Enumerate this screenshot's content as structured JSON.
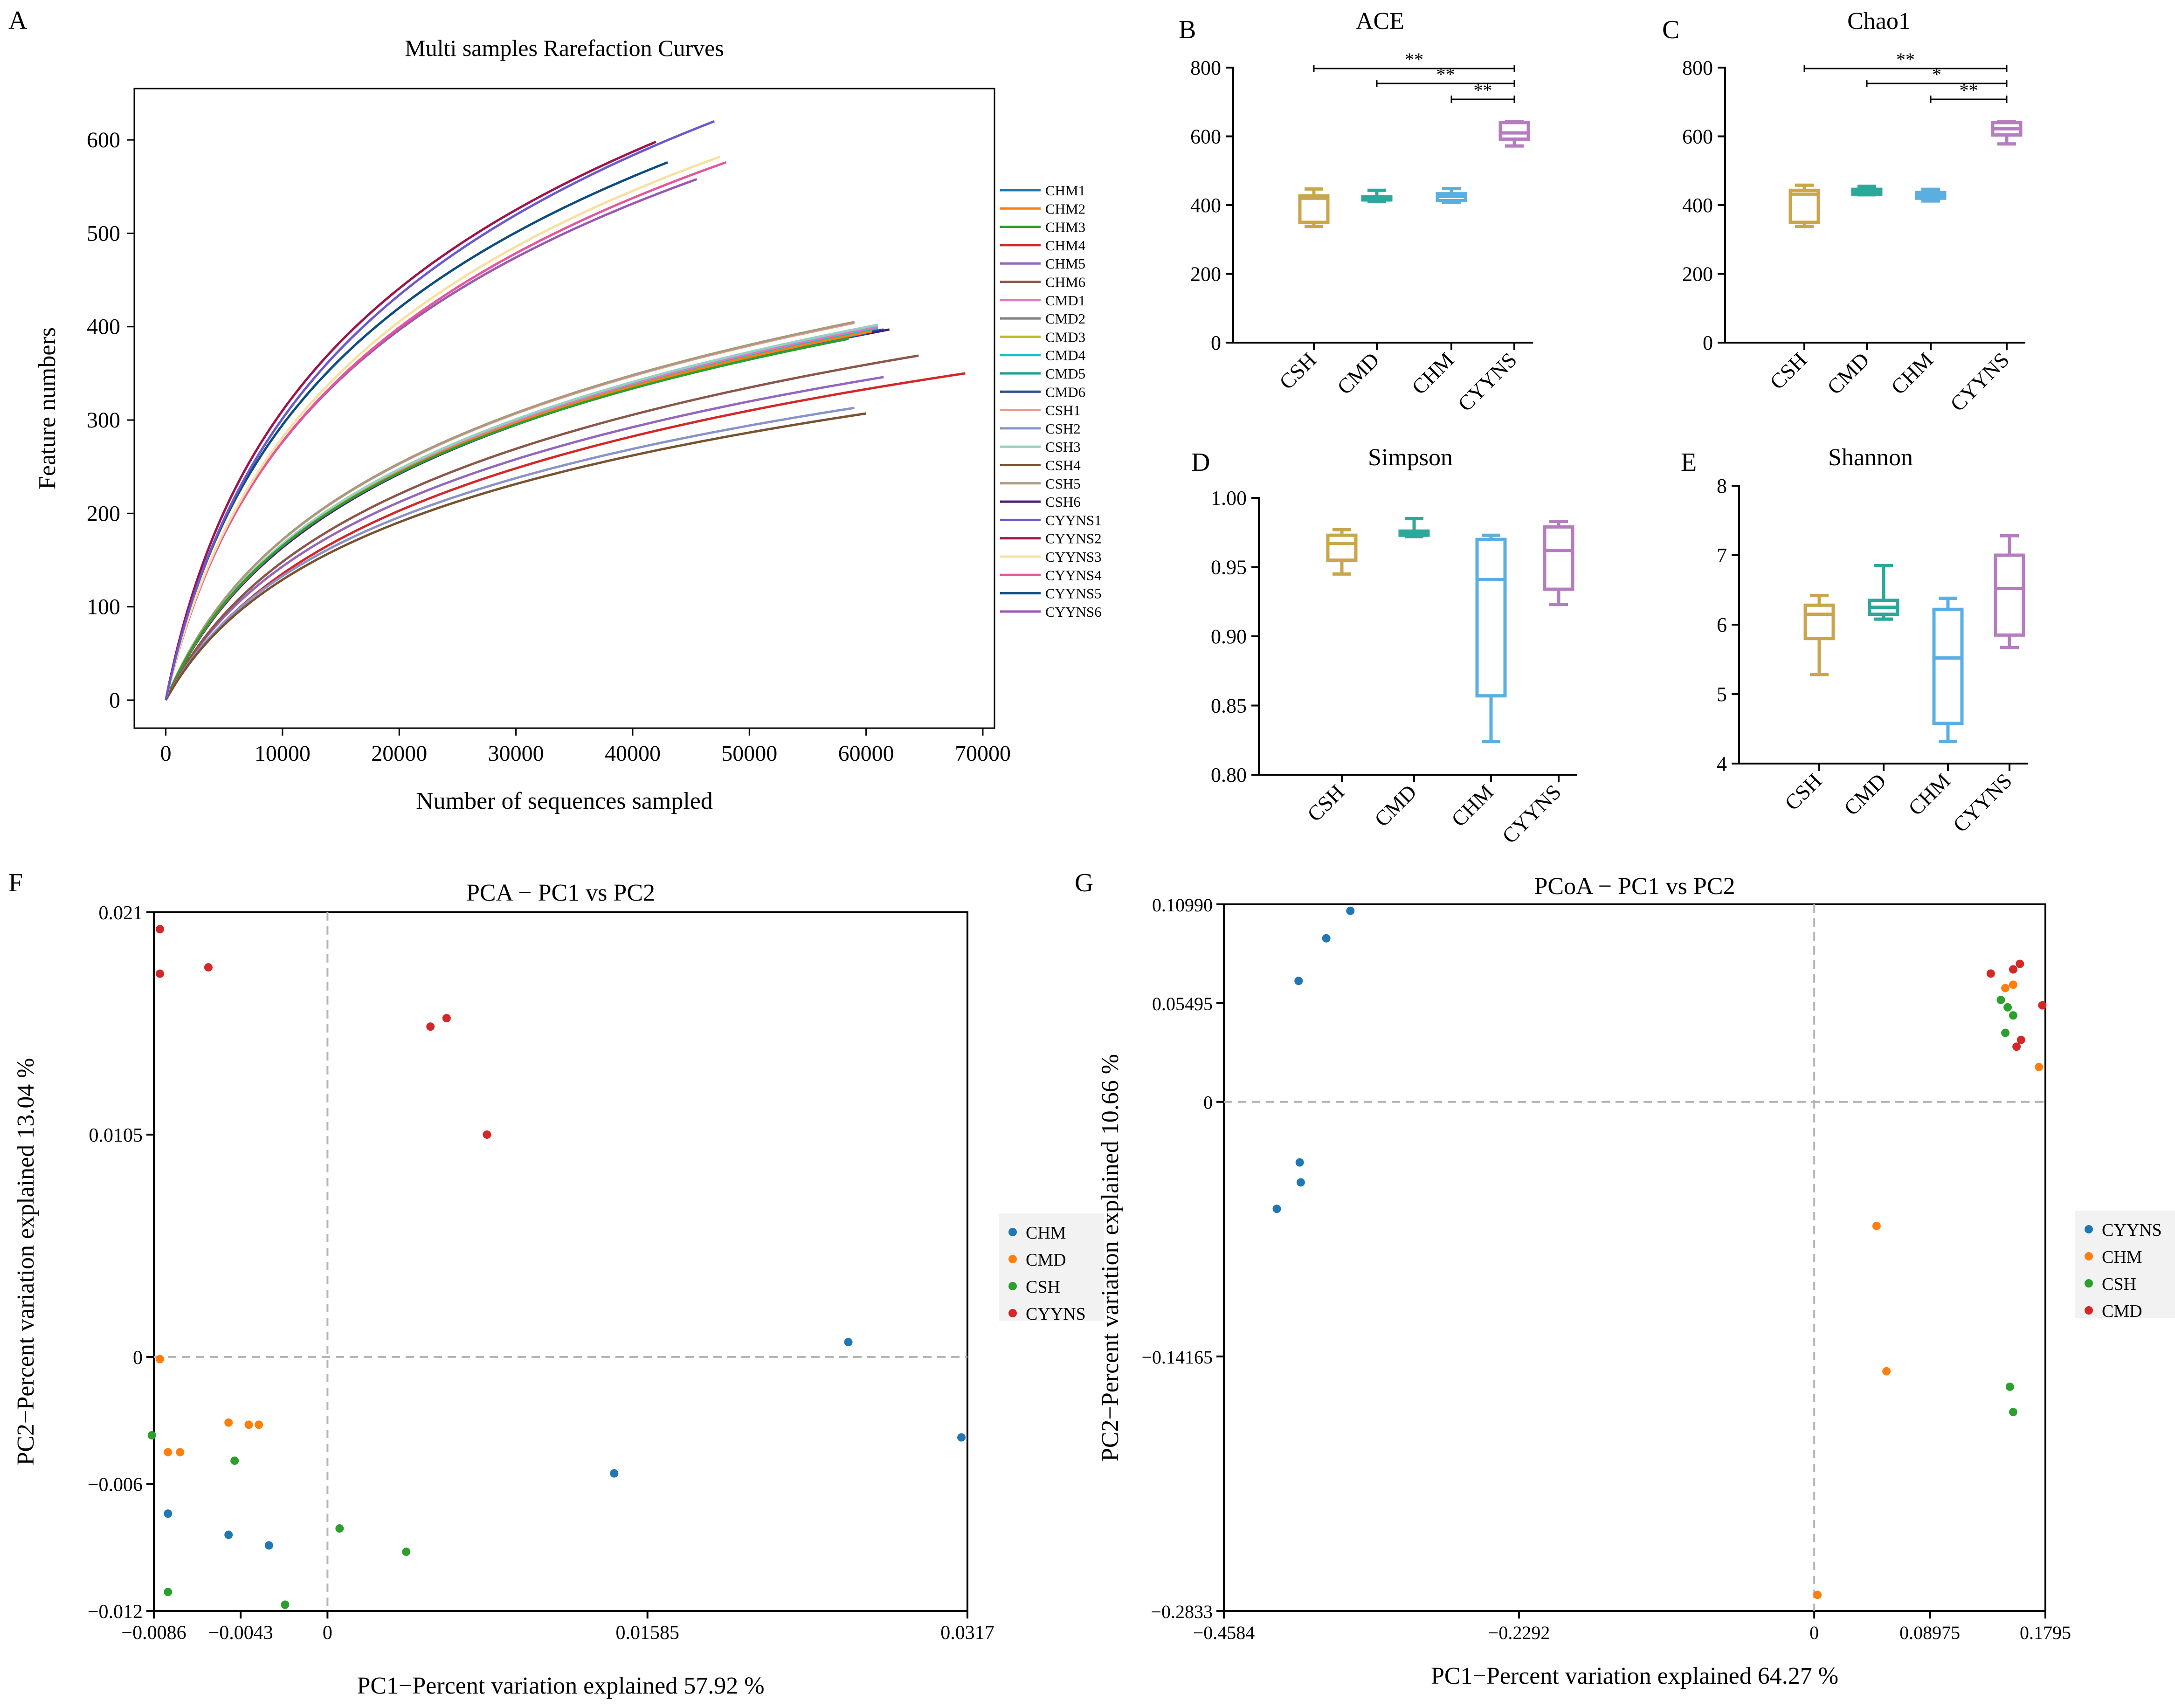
{
  "colors": {
    "CHM1": "#1f77b4",
    "CHM2": "#ff7f0e",
    "CHM3": "#2ca02c",
    "CHM4": "#d62728",
    "CHM5": "#9467bd",
    "CHM6": "#8c564b",
    "CMD1": "#e377c2",
    "CMD2": "#7f7f7f",
    "CMD3": "#bcbd22",
    "CMD4": "#17becf",
    "CMD5": "#1a9e8f",
    "CMD6": "#2a4d8f",
    "CSH1": "#f29a8a",
    "CSH2": "#8a93c8",
    "CSH3": "#8fd3c0",
    "CSH4": "#7a5230",
    "CSH5": "#a89a80",
    "CSH6": "#4b1a7a",
    "CYYNS1": "#6a5acd",
    "CYYNS2": "#a0134d",
    "CYYNS3": "#f7e0a0",
    "CYYNS4": "#e8559a",
    "CYYNS5": "#0d4d80",
    "CYYNS6": "#9b59b6",
    "box_CSH": "#c9a64a",
    "box_CMD": "#2aa89a",
    "box_CHM": "#5aaee0",
    "box_CYYNS": "#b57cc0",
    "scatter_blue": "#1f77b4",
    "scatter_orange": "#ff7f0e",
    "scatter_green": "#2ca02c",
    "scatter_red": "#d62728"
  },
  "chart_data": [
    {
      "panel": "A",
      "type": "line",
      "title": "Multi samples Rarefaction Curves",
      "xlabel": "Number of sequences sampled",
      "ylabel": "Feature numbers",
      "xlim": [
        -2700,
        71000
      ],
      "ylim": [
        -30,
        655
      ],
      "xticks": [
        0,
        10000,
        20000,
        30000,
        40000,
        50000,
        60000,
        70000
      ],
      "xtick_labels": [
        "0",
        "10000",
        "20000",
        "30000",
        "40000",
        "50000",
        "60000",
        "70000"
      ],
      "yticks": [
        0,
        100,
        200,
        300,
        400,
        500,
        600
      ],
      "ytick_labels": [
        "0",
        "100",
        "200",
        "300",
        "400",
        "500",
        "600"
      ],
      "series": [
        {
          "name": "CHM1",
          "max_x": 60000,
          "max_y": 393
        },
        {
          "name": "CHM2",
          "max_x": 60500,
          "max_y": 395
        },
        {
          "name": "CHM3",
          "max_x": 58500,
          "max_y": 387
        },
        {
          "name": "CHM4",
          "max_x": 68500,
          "max_y": 350
        },
        {
          "name": "CHM5",
          "max_x": 61500,
          "max_y": 346
        },
        {
          "name": "CHM6",
          "max_x": 64500,
          "max_y": 369
        },
        {
          "name": "CMD1",
          "max_x": 61000,
          "max_y": 400
        },
        {
          "name": "CMD2",
          "max_x": 60000,
          "max_y": 396
        },
        {
          "name": "CMD3",
          "max_x": 61000,
          "max_y": 398
        },
        {
          "name": "CMD4",
          "max_x": 61000,
          "max_y": 398
        },
        {
          "name": "CMD5",
          "max_x": 58500,
          "max_y": 387
        },
        {
          "name": "CMD6",
          "max_x": 61500,
          "max_y": 397
        },
        {
          "name": "CSH1",
          "max_x": 59000,
          "max_y": 404
        },
        {
          "name": "CSH2",
          "max_x": 59000,
          "max_y": 313
        },
        {
          "name": "CSH3",
          "max_x": 61000,
          "max_y": 402
        },
        {
          "name": "CSH4",
          "max_x": 60000,
          "max_y": 307
        },
        {
          "name": "CSH5",
          "max_x": 59000,
          "max_y": 405
        },
        {
          "name": "CSH6",
          "max_x": 62000,
          "max_y": 397
        },
        {
          "name": "CYYNS1",
          "max_x": 47000,
          "max_y": 620
        },
        {
          "name": "CYYNS2",
          "max_x": 42000,
          "max_y": 598
        },
        {
          "name": "CYYNS3",
          "max_x": 47500,
          "max_y": 582
        },
        {
          "name": "CYYNS4",
          "max_x": 48000,
          "max_y": 576
        },
        {
          "name": "CYYNS5",
          "max_x": 43000,
          "max_y": 576
        },
        {
          "name": "CYYNS6",
          "max_x": 45500,
          "max_y": 558
        }
      ]
    },
    {
      "panel": "B",
      "type": "box",
      "title": "ACE",
      "categories": [
        "CSH",
        "CMD",
        "CHM",
        "CYYNS"
      ],
      "ylim": [
        0,
        800
      ],
      "yticks": [
        0,
        200,
        400,
        600,
        800
      ],
      "ytick_labels": [
        "0",
        "200",
        "400",
        "600",
        "800"
      ],
      "boxes": [
        {
          "min": 338,
          "q1": 350,
          "median": 420,
          "q3": 427,
          "max": 447
        },
        {
          "min": 410,
          "q1": 415,
          "median": 420,
          "q3": 424,
          "max": 443
        },
        {
          "min": 408,
          "q1": 413,
          "median": 425,
          "q3": 433,
          "max": 448
        },
        {
          "min": 572,
          "q1": 592,
          "median": 610,
          "q3": 640,
          "max": 643
        }
      ],
      "sig": [
        {
          "from": 0,
          "to": 3,
          "label": "**"
        },
        {
          "from": 1,
          "to": 3,
          "label": "**"
        },
        {
          "from": 2,
          "to": 3,
          "label": "**"
        }
      ]
    },
    {
      "panel": "C",
      "type": "box",
      "title": "Chao1",
      "categories": [
        "CSH",
        "CMD",
        "CHM",
        "CYYNS"
      ],
      "ylim": [
        0,
        800
      ],
      "yticks": [
        0,
        200,
        400,
        600,
        800
      ],
      "ytick_labels": [
        "0",
        "200",
        "400",
        "600",
        "800"
      ],
      "boxes": [
        {
          "min": 338,
          "q1": 350,
          "median": 432,
          "q3": 443,
          "max": 458
        },
        {
          "min": 430,
          "q1": 432,
          "median": 440,
          "q3": 446,
          "max": 455
        },
        {
          "min": 412,
          "q1": 420,
          "median": 428,
          "q3": 437,
          "max": 446
        },
        {
          "min": 578,
          "q1": 604,
          "median": 622,
          "q3": 640,
          "max": 643
        }
      ],
      "sig": [
        {
          "from": 0,
          "to": 3,
          "label": "**"
        },
        {
          "from": 1,
          "to": 3,
          "label": "*"
        },
        {
          "from": 2,
          "to": 3,
          "label": "**"
        }
      ]
    },
    {
      "panel": "D",
      "type": "box",
      "title": "Simpson",
      "categories": [
        "CSH",
        "CMD",
        "CHM",
        "CYYNS"
      ],
      "ylim": [
        0.8,
        1.0
      ],
      "yticks": [
        0.8,
        0.85,
        0.9,
        0.95,
        1.0
      ],
      "ytick_labels": [
        "0.80",
        "0.85",
        "0.90",
        "0.95",
        "1.00"
      ],
      "boxes": [
        {
          "min": 0.945,
          "q1": 0.955,
          "median": 0.967,
          "q3": 0.973,
          "max": 0.977
        },
        {
          "min": 0.972,
          "q1": 0.973,
          "median": 0.975,
          "q3": 0.976,
          "max": 0.985
        },
        {
          "min": 0.824,
          "q1": 0.857,
          "median": 0.941,
          "q3": 0.97,
          "max": 0.973
        },
        {
          "min": 0.923,
          "q1": 0.934,
          "median": 0.962,
          "q3": 0.979,
          "max": 0.983
        }
      ]
    },
    {
      "panel": "E",
      "type": "box",
      "title": "Shannon",
      "categories": [
        "CSH",
        "CMD",
        "CHM",
        "CYYNS"
      ],
      "ylim": [
        4,
        8
      ],
      "yticks": [
        4,
        5,
        6,
        7,
        8
      ],
      "ytick_labels": [
        "4",
        "5",
        "6",
        "7",
        "8"
      ],
      "boxes": [
        {
          "min": 5.28,
          "q1": 5.8,
          "median": 6.15,
          "q3": 6.28,
          "max": 6.42
        },
        {
          "min": 6.08,
          "q1": 6.15,
          "median": 6.25,
          "q3": 6.35,
          "max": 6.85
        },
        {
          "min": 4.32,
          "q1": 4.58,
          "median": 5.52,
          "q3": 6.22,
          "max": 6.38
        },
        {
          "min": 5.67,
          "q1": 5.85,
          "median": 6.52,
          "q3": 7.0,
          "max": 7.28
        }
      ]
    },
    {
      "panel": "F",
      "type": "scatter",
      "title": "PCA − PC1 vs PC2",
      "xlabel": "PC1−Percent variation explained 57.92 %",
      "ylabel": "PC2−Percent variation explained 13.04 %",
      "xlim": [
        -0.0086,
        0.0317
      ],
      "ylim": [
        -0.012,
        0.021
      ],
      "xticks": [
        -0.0086,
        -0.0043,
        0,
        0.01585,
        0.0317
      ],
      "xtick_labels": [
        "−0.0086",
        "−0.0043",
        "0",
        "0.01585",
        "0.0317"
      ],
      "yticks": [
        -0.012,
        -0.006,
        0,
        0.0105,
        0.021
      ],
      "ytick_labels": [
        "−0.012",
        "−0.006",
        "0",
        "0.0105",
        "0.021"
      ],
      "legend": [
        "CHM",
        "CMD",
        "CSH",
        "CYYNS"
      ],
      "groups": [
        {
          "name": "CHM",
          "color_key": "scatter_blue",
          "points": [
            [
              0.0258,
              0.0007
            ],
            [
              0.0314,
              -0.0038
            ],
            [
              0.0142,
              -0.0055
            ],
            [
              -0.0079,
              -0.0074
            ],
            [
              -0.0049,
              -0.0084
            ],
            [
              -0.0029,
              -0.0089
            ]
          ]
        },
        {
          "name": "CMD",
          "color_key": "scatter_orange",
          "points": [
            [
              -0.0083,
              -0.0001
            ],
            [
              -0.0049,
              -0.0031
            ],
            [
              -0.0039,
              -0.0032
            ],
            [
              -0.0034,
              -0.0032
            ],
            [
              -0.0079,
              -0.0045
            ],
            [
              -0.0073,
              -0.0045
            ]
          ]
        },
        {
          "name": "CSH",
          "color_key": "scatter_green",
          "points": [
            [
              -0.0087,
              -0.0037
            ],
            [
              -0.0046,
              -0.0049
            ],
            [
              -0.0079,
              -0.0111
            ],
            [
              -0.0021,
              -0.0117
            ],
            [
              0.0006,
              -0.0081
            ],
            [
              0.0039,
              -0.0092
            ]
          ]
        },
        {
          "name": "CYYNS",
          "color_key": "scatter_red",
          "points": [
            [
              -0.0083,
              0.0202
            ],
            [
              -0.0083,
              0.0181
            ],
            [
              -0.0059,
              0.0184
            ],
            [
              0.0051,
              0.0156
            ],
            [
              0.0059,
              0.016
            ],
            [
              0.0079,
              0.0105
            ]
          ]
        }
      ]
    },
    {
      "panel": "G",
      "type": "scatter",
      "title": "PCoA − PC1 vs PC2",
      "xlabel": "PC1−Percent variation explained 64.27 %",
      "ylabel": "PC2−Percent variation explained 10.66 %",
      "xlim": [
        -0.4584,
        0.1795
      ],
      "ylim": [
        -0.2833,
        0.1099
      ],
      "xticks": [
        -0.4584,
        -0.2292,
        0,
        0.08975,
        0.1795
      ],
      "xtick_labels": [
        "−0.4584",
        "−0.2292",
        "0",
        "0.08975",
        "0.1795"
      ],
      "yticks": [
        -0.2833,
        -0.14165,
        0,
        0.05495,
        0.1099
      ],
      "ytick_labels": [
        "−0.2833",
        "−0.14165",
        "0",
        "0.05495",
        "0.10990"
      ],
      "legend": [
        "CYYNS",
        "CHM",
        "CSH",
        "CMD"
      ],
      "groups": [
        {
          "name": "CYYNS",
          "color_key": "scatter_blue",
          "points": [
            [
              -0.3602,
              0.1063
            ],
            [
              -0.3789,
              0.091
            ],
            [
              -0.4004,
              0.0673
            ],
            [
              -0.3995,
              -0.0337
            ],
            [
              -0.3987,
              -0.0448
            ],
            [
              -0.4173,
              -0.0595
            ]
          ]
        },
        {
          "name": "CHM",
          "color_key": "scatter_orange",
          "points": [
            [
              0.1484,
              0.0633
            ],
            [
              0.1545,
              0.0652
            ],
            [
              0.1745,
              0.0194
            ],
            [
              0.0484,
              -0.069
            ],
            [
              0.0561,
              -0.1499
            ],
            [
              0.0025,
              -0.2743
            ]
          ]
        },
        {
          "name": "CSH",
          "color_key": "scatter_green",
          "points": [
            [
              0.1449,
              0.0567
            ],
            [
              0.1502,
              0.0526
            ],
            [
              0.1545,
              0.0481
            ],
            [
              0.1484,
              0.0384
            ],
            [
              0.1519,
              -0.1585
            ],
            [
              0.1545,
              -0.1726
            ]
          ]
        },
        {
          "name": "CMD",
          "color_key": "scatter_red",
          "points": [
            [
              0.1371,
              0.0714
            ],
            [
              0.1545,
              0.0737
            ],
            [
              0.1597,
              0.0768
            ],
            [
              0.1771,
              0.0537
            ],
            [
              0.1606,
              0.0345
            ],
            [
              0.1571,
              0.0307
            ]
          ]
        }
      ]
    }
  ],
  "panel_labels": {
    "a": "A",
    "b": "B",
    "c": "C",
    "d": "D",
    "e": "E",
    "f": "F",
    "g": "G"
  }
}
